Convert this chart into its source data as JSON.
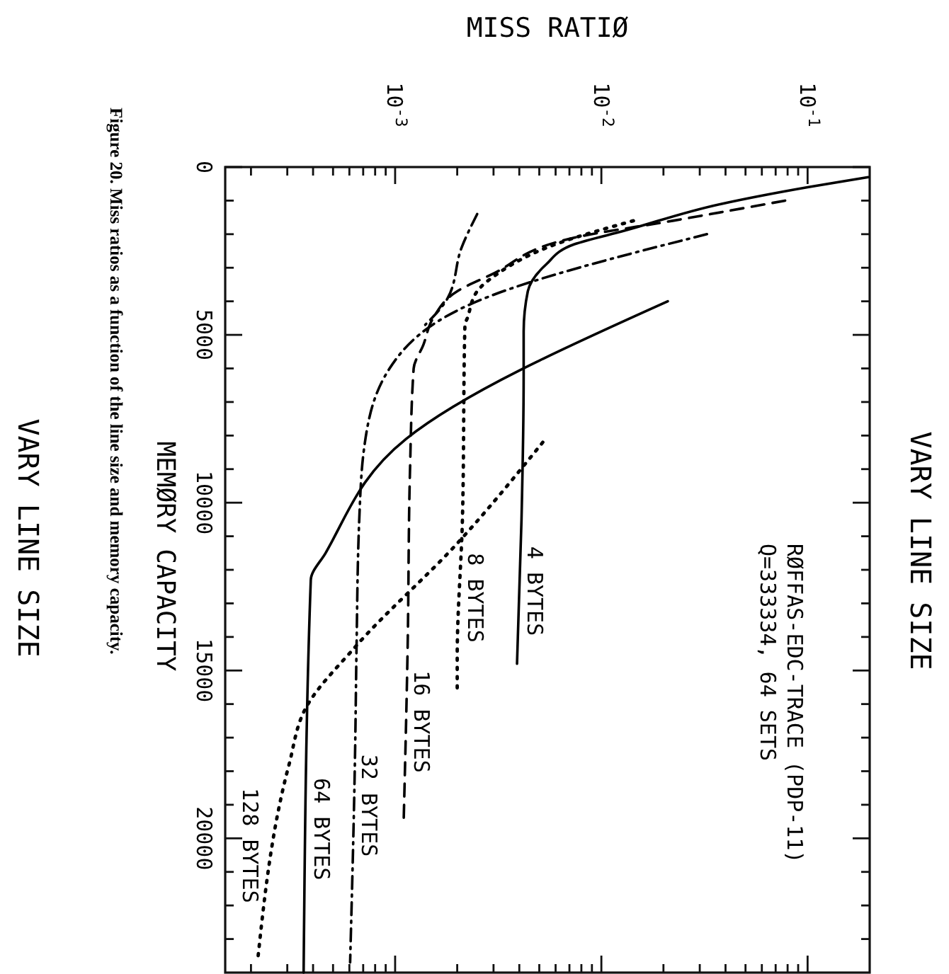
{
  "chart_data": {
    "type": "line",
    "title": "VARY LINE SIZE",
    "xlabel": "MISS RATIØ",
    "ylabel": "MEMØRY CAPACITY",
    "annotations": [
      "RØFFAS-EDC-TRACE (PDP-11)",
      "Q=333334, 64 SETS",
      "Figure 20.  Miss ratios as a function of the line size and memory capacity.",
      "VARY LINE SIZE"
    ],
    "log": "x",
    "grid": false,
    "legend": false,
    "marker": "none",
    "ylim": [
      24000,
      0
    ],
    "yticks": [
      0,
      {
        "value": 1000,
        "label": null
      },
      {
        "value": 2000,
        "label": null
      },
      {
        "value": 3000,
        "label": null
      },
      {
        "value": 4000,
        "label": null
      },
      5000,
      {
        "value": 6000,
        "label": null
      },
      {
        "value": 7000,
        "label": null
      },
      {
        "value": 8000,
        "label": null
      },
      {
        "value": 9000,
        "label": null
      },
      10000,
      {
        "value": 11000,
        "label": null
      },
      {
        "value": 12000,
        "label": null
      },
      {
        "value": 13000,
        "label": null
      },
      {
        "value": 14000,
        "label": null
      },
      15000,
      {
        "value": 16000,
        "label": null
      },
      {
        "value": 17000,
        "label": null
      },
      {
        "value": 18000,
        "label": null
      },
      {
        "value": 19000,
        "label": null
      },
      20000,
      {
        "value": 21000,
        "label": null
      },
      {
        "value": 22000,
        "label": null
      },
      {
        "value": 23000,
        "label": null
      }
    ],
    "xlim": [
      0.00015,
      0.2
    ],
    "xticks": [
      {
        "value": 0.0002,
        "label": null
      },
      {
        "value": 0.0003,
        "label": null
      },
      {
        "value": 0.0004,
        "label": null
      },
      {
        "value": 0.0005,
        "label": null
      },
      {
        "value": 0.0006,
        "label": null
      },
      {
        "value": 0.0007,
        "label": null
      },
      {
        "value": 0.0008,
        "label": null
      },
      {
        "value": 0.0009,
        "label": null
      },
      {
        "value": 0.001,
        "label": "10$^{-3}$"
      },
      {
        "value": 0.002,
        "label": null
      },
      {
        "value": 0.003,
        "label": null
      },
      {
        "value": 0.004,
        "label": null
      },
      {
        "value": 0.005,
        "label": null
      },
      {
        "value": 0.006,
        "label": null
      },
      {
        "value": 0.007,
        "label": null
      },
      {
        "value": 0.008,
        "label": null
      },
      {
        "value": 0.009,
        "label": null
      },
      {
        "value": 0.01,
        "label": "10$^{-2}$"
      },
      {
        "value": 0.02,
        "label": null
      },
      {
        "value": 0.03,
        "label": null
      },
      {
        "value": 0.04,
        "label": null
      },
      {
        "value": 0.05,
        "label": null
      },
      {
        "value": 0.06,
        "label": null
      },
      {
        "value": 0.07,
        "label": null
      },
      {
        "value": 0.08,
        "label": null
      },
      {
        "value": 0.09,
        "label": null
      },
      {
        "value": 0.1,
        "label": "10$^{-1}$"
      }
    ],
    "series": [
      {
        "name": "4 BYTES",
        "color": "#000000",
        "line_style": "solid",
        "values": [
          300,
          600,
          1100,
          1900,
          2300,
          2900,
          3700,
          4900,
          6200,
          10500,
          14800
        ],
        "x": [
          0.197,
          0.1,
          0.038,
          0.0129,
          0.0074,
          0.0054,
          0.0044,
          0.0042,
          0.0042,
          0.0041,
          0.0039
        ]
      },
      {
        "name": "8 BYTES",
        "color": "#000000",
        "line_style": "dotted",
        "values": [
          1600,
          2300,
          3200,
          3700,
          4500,
          4700,
          10500,
          14600,
          15600
        ],
        "x": [
          0.0143,
          0.006,
          0.0031,
          0.0025,
          0.00224,
          0.00218,
          0.00212,
          0.002,
          0.002
        ]
      },
      {
        "name": "16 BYTES",
        "color": "#000000",
        "line_style": "dashed",
        "values": [
          1000,
          1600,
          2100,
          3200,
          3700,
          4500,
          5300,
          6000,
          9100,
          14300,
          19500
        ],
        "x": [
          0.0778,
          0.0222,
          0.00745,
          0.00294,
          0.002,
          0.00153,
          0.00137,
          0.00123,
          0.00118,
          0.00115,
          0.0011
        ]
      },
      {
        "name": "32 BYTES",
        "color": "#000000",
        "line_style": "dashdot",
        "values": [
          2000,
          4000,
          6000,
          8300,
          10500,
          14300,
          17300,
          23700
        ],
        "x": [
          0.0325,
          0.0025,
          0.00094,
          0.00071,
          0.00067,
          0.00065,
          0.00064,
          0.000605
        ]
      },
      {
        "name": "64 BYTES",
        "color": "#000000",
        "line_style": "solid",
        "values": [
          4000,
          8100,
          11500,
          12300,
          24000
        ],
        "x": [
          0.021,
          0.00113,
          0.00046,
          0.00039,
          0.00036
        ]
      },
      {
        "name": "128 BYTES",
        "color": "#000000",
        "line_style": "dotted",
        "values": [
          8200,
          11200,
          14300,
          16100,
          17800,
          23700
        ],
        "x": [
          0.0052,
          0.00201,
          0.00064,
          0.00037,
          0.000306,
          0.000215
        ]
      },
      {
        "color": "#000000",
        "line_style": "dashdot",
        "values": [
          1400,
          2400,
          3900,
          4700
        ],
        "x": [
          0.0025,
          0.0021,
          0.0018,
          0.0014
        ]
      }
    ]
  }
}
